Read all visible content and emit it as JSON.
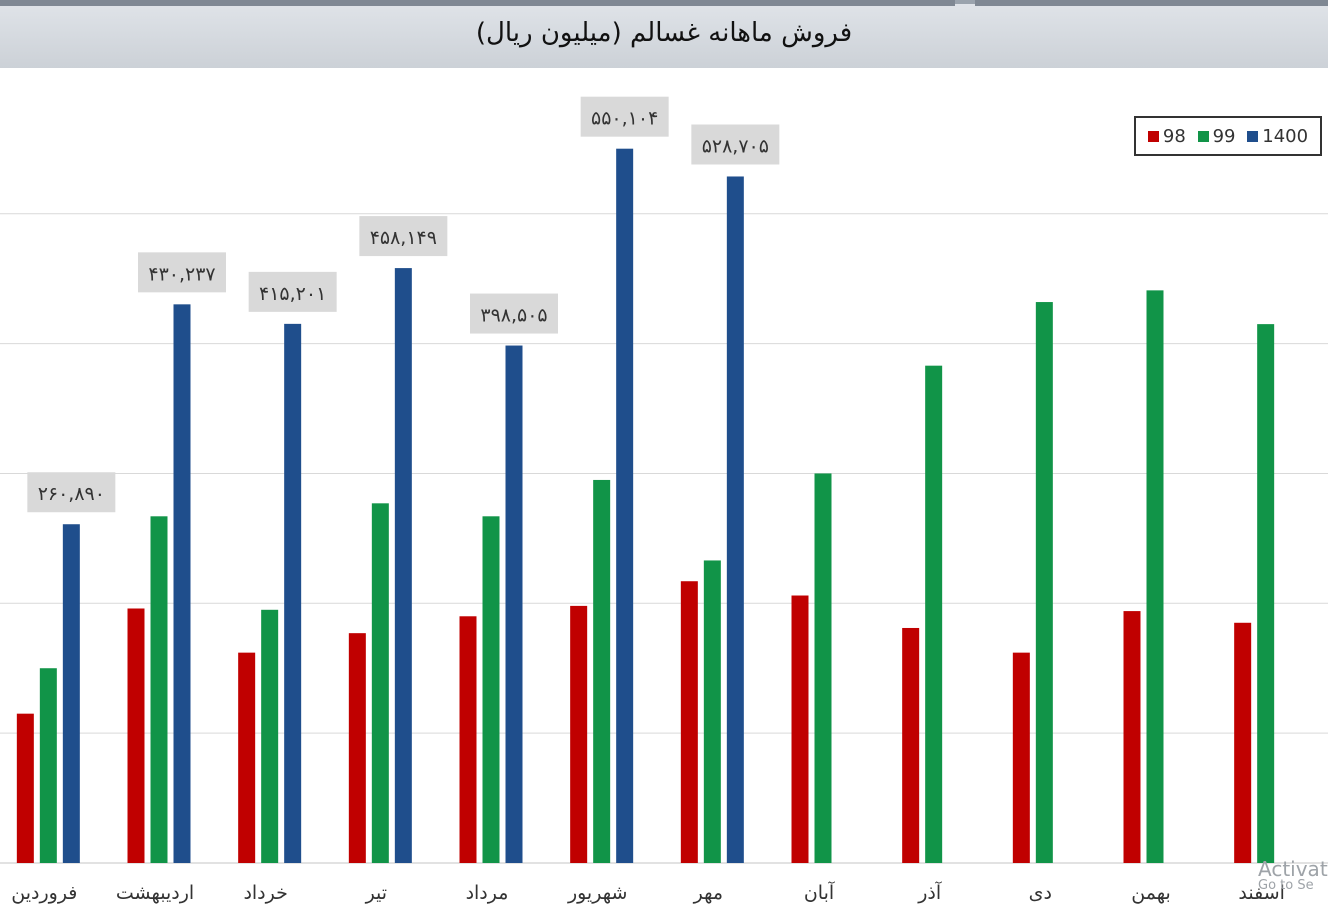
{
  "colors": {
    "y98": "#c00000",
    "y99": "#119448",
    "y1400": "#1f4e8c",
    "label_bg": "#d9d9d9",
    "grid": "#d9d9d9"
  },
  "watermark": {
    "line1": "Activat",
    "line2": "Go to Se"
  },
  "chart_data": {
    "type": "bar",
    "title": "فروش ماهانه غسالم (میلیون ریال)",
    "categories": [
      "فروردین",
      "اردیبهشت",
      "خرداد",
      "تیر",
      "مرداد",
      "شهریور",
      "مهر",
      "آبان",
      "آذر",
      "دی",
      "بهمن",
      "اسفند"
    ],
    "series": [
      {
        "name": "98",
        "values": [
          115,
          196,
          162,
          177,
          190,
          198,
          217,
          206,
          181,
          162,
          194,
          185
        ]
      },
      {
        "name": "99",
        "values": [
          150,
          267,
          195,
          277,
          267,
          295,
          233,
          300,
          383,
          432,
          441,
          415
        ]
      },
      {
        "name": "1400",
        "values": [
          260.89,
          430.237,
          415.201,
          458.149,
          398.505,
          550.104,
          528.705,
          null,
          null,
          null,
          null,
          null
        ]
      }
    ],
    "data_labels": [
      "۲۶۰,۸۹۰",
      "۴۳۰,۲۳۷",
      "۴۱۵,۲۰۱",
      "۴۵۸,۱۴۹",
      "۳۹۸,۵۰۵",
      "۵۵۰,۱۰۴",
      "۵۲۸,۷۰۵"
    ],
    "ylim": [
      0,
      600
    ],
    "grid": true,
    "legend_position": "top-right"
  }
}
